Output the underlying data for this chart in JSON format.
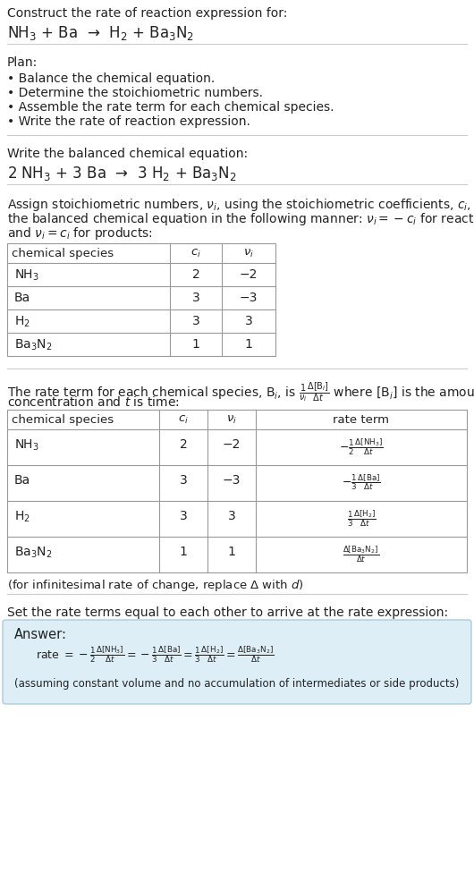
{
  "bg_color": "#ffffff",
  "text_color": "#222222",
  "answer_bg_color": "#ddeef6",
  "answer_border_color": "#aaccdd",
  "table_line_color": "#999999",
  "divider_color": "#cccccc",
  "section1_title": "Construct the rate of reaction expression for:",
  "section1_eq": "NH$_3$ + Ba  →  H$_2$ + Ba$_3$N$_2$",
  "section2_title": "Plan:",
  "section2_bullets": [
    "• Balance the chemical equation.",
    "• Determine the stoichiometric numbers.",
    "• Assemble the rate term for each chemical species.",
    "• Write the rate of reaction expression."
  ],
  "section3_title": "Write the balanced chemical equation:",
  "section3_eq": "2 NH$_3$ + 3 Ba  →  3 H$_2$ + Ba$_3$N$_2$",
  "section4_intro": "Assign stoichiometric numbers, $\\nu_i$, using the stoichiometric coefficients, $c_i$, from the balanced chemical equation in the following manner: $\\nu_i = -c_i$ for reactants and $\\nu_i = c_i$ for products:",
  "table1_headers": [
    "chemical species",
    "$c_i$",
    "$\\nu_i$"
  ],
  "table1_rows": [
    [
      "NH$_3$",
      "2",
      "−2"
    ],
    [
      "Ba",
      "3",
      "−3"
    ],
    [
      "H$_2$",
      "3",
      "3"
    ],
    [
      "Ba$_3$N$_2$",
      "1",
      "1"
    ]
  ],
  "section5_intro_line1": "The rate term for each chemical species, B$_i$, is $\\frac{1}{\\nu_i}\\frac{\\Delta[\\mathrm{B}_i]}{\\Delta t}$ where [B$_i$] is the amount",
  "section5_intro_line2": "concentration and $t$ is time:",
  "table2_headers": [
    "chemical species",
    "$c_i$",
    "$\\nu_i$",
    "rate term"
  ],
  "table2_rows": [
    [
      "NH$_3$",
      "2",
      "−2",
      "$-\\frac{1}{2}\\frac{\\Delta[\\mathrm{NH_3}]}{\\Delta t}$"
    ],
    [
      "Ba",
      "3",
      "−3",
      "$-\\frac{1}{3}\\frac{\\Delta[\\mathrm{Ba}]}{\\Delta t}$"
    ],
    [
      "H$_2$",
      "3",
      "3",
      "$\\frac{1}{3}\\frac{\\Delta[\\mathrm{H_2}]}{\\Delta t}$"
    ],
    [
      "Ba$_3$N$_2$",
      "1",
      "1",
      "$\\frac{\\Delta[\\mathrm{Ba_3N_2}]}{\\Delta t}$"
    ]
  ],
  "section5_footnote": "(for infinitesimal rate of change, replace Δ with $d$)",
  "section6_title": "Set the rate terms equal to each other to arrive at the rate expression:",
  "answer_label": "Answer:",
  "answer_eq_line": "rate $= -\\frac{1}{2}\\frac{\\Delta[\\mathrm{NH_3}]}{\\Delta t} = -\\frac{1}{3}\\frac{\\Delta[\\mathrm{Ba}]}{\\Delta t} = \\frac{1}{3}\\frac{\\Delta[\\mathrm{H_2}]}{\\Delta t} = \\frac{\\Delta[\\mathrm{Ba_3N_2}]}{\\Delta t}$",
  "answer_footnote": "(assuming constant volume and no accumulation of intermediates or side products)"
}
